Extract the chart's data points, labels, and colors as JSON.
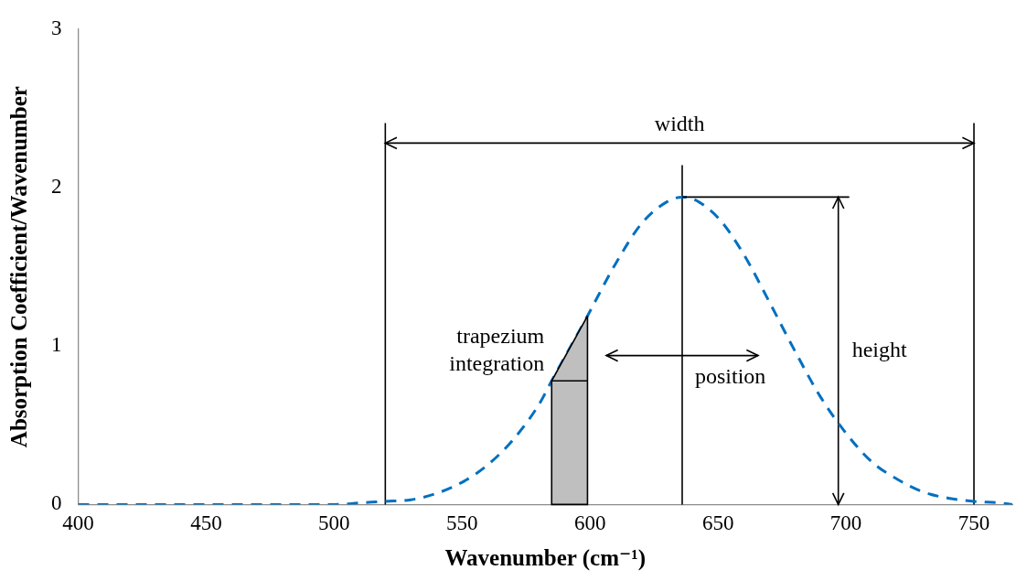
{
  "chart_data": {
    "type": "line",
    "xlabel": "Wavenumber (cm⁻¹)",
    "ylabel": "Absorption Coefficient/Wavenumber",
    "xlim": [
      400,
      765
    ],
    "xticks": [
      400,
      450,
      500,
      550,
      600,
      650,
      700,
      750
    ],
    "ylim": [
      0,
      3
    ],
    "yticks": [
      0,
      1,
      2,
      3
    ],
    "grid": false,
    "legend": false,
    "marker": "none",
    "line_style": "dashed",
    "series": [
      {
        "color": "#0070c0",
        "x": [
          400,
          420,
          440,
          460,
          480,
          500,
          510,
          520,
          530,
          540,
          550,
          560,
          570,
          580,
          585,
          599,
          610,
          620,
          630,
          636,
          640,
          650,
          660,
          670,
          680,
          690,
          700,
          710,
          720,
          730,
          740,
          750,
          760,
          765
        ],
        "values": [
          0,
          0,
          0,
          0,
          0,
          0,
          0.01,
          0.02,
          0.03,
          0.07,
          0.14,
          0.25,
          0.41,
          0.63,
          0.78,
          1.19,
          1.52,
          1.77,
          1.91,
          1.94,
          1.93,
          1.81,
          1.58,
          1.28,
          0.97,
          0.68,
          0.45,
          0.27,
          0.16,
          0.08,
          0.04,
          0.02,
          0.01,
          0
        ]
      }
    ],
    "ref_lines": [
      {
        "axis": "x",
        "value": 520
      },
      {
        "axis": "x",
        "value": 750
      },
      {
        "axis": "x",
        "value": 636
      },
      {
        "axis": "x",
        "value": 697
      }
    ],
    "annotations": [
      "width",
      "height",
      {
        "text": "position",
        "x": 636,
        "y": 0.94
      },
      {
        "text": "trapezium\nintegration",
        "x": 585,
        "y": 0.78
      }
    ]
  }
}
